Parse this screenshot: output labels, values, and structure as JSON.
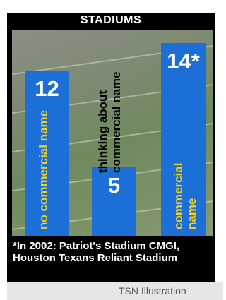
{
  "chart_data": {
    "type": "bar",
    "title": "STADIUMS",
    "categories": [
      "no commercial name",
      "thinking about commercial name",
      "commercial name"
    ],
    "values": [
      12,
      5,
      14
    ],
    "value_labels": [
      "12",
      "5",
      "14*"
    ],
    "color": "#1c6fd6",
    "footnote": "*In 2002: Patriot's Stadium CMGI, Houston Texans Reliant Stadium",
    "credit": "TSN Illustration"
  }
}
